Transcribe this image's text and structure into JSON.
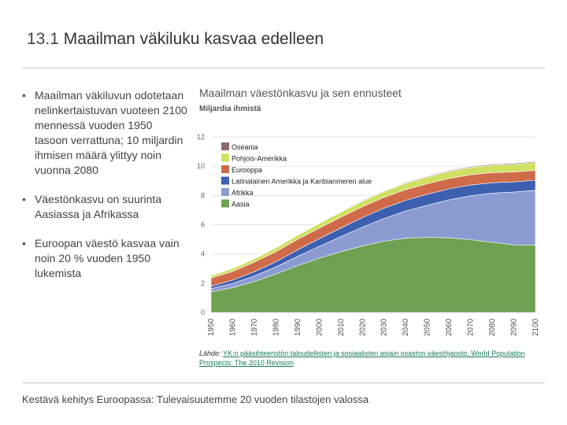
{
  "slide": {
    "number": "13.1",
    "title": "Maailman väkiluku kasvaa edelleen",
    "footer": "Kestävä kehitys Euroopassa: Tulevaisuutemme 20 vuoden tilastojen valossa"
  },
  "bullets": [
    "Maailman väkiluvun odotetaan nelinkertaistuvan vuoteen 2100 mennessä vuoden 1950 tasoon verrattuna; 10 miljardin ihmisen määrä ylittyy noin vuonna 2080",
    "Väestönkasvu on suurinta Aasiassa ja Afrikassa",
    "Euroopan väestö kasvaa vain noin 20 % vuoden 1950 lukemista"
  ],
  "source": {
    "prefix": "Lähde: ",
    "link_text": "YK:n pääsihteeristön taloudellisten ja sosiaalisten asiain osaston väestöjaosto, World Population Prospects: The 2010 Revision"
  },
  "chart_data": {
    "type": "area",
    "stacked": true,
    "title": "Maailman väestönkasvu ja sen ennusteet",
    "ylabel": "Miljardia ihmistä",
    "ylim": [
      0,
      12
    ],
    "yticks": [
      0,
      2,
      4,
      6,
      8,
      10,
      12
    ],
    "x": [
      1950,
      1960,
      1970,
      1980,
      1990,
      2000,
      2010,
      2020,
      2030,
      2040,
      2050,
      2060,
      2070,
      2080,
      2090,
      2100
    ],
    "series": [
      {
        "name": "Aasia",
        "color": "#6fa152",
        "values": [
          1.4,
          1.7,
          2.12,
          2.63,
          3.2,
          3.71,
          4.16,
          4.55,
          4.87,
          5.08,
          5.14,
          5.1,
          4.98,
          4.8,
          4.62,
          4.6
        ]
      },
      {
        "name": "Afrikka",
        "color": "#8b9bd2",
        "values": [
          0.23,
          0.29,
          0.37,
          0.48,
          0.63,
          0.81,
          1.02,
          1.29,
          1.56,
          1.86,
          2.19,
          2.6,
          3.0,
          3.36,
          3.62,
          3.75
        ]
      },
      {
        "name": "Latinalainen Amerikka ja Karibianmeren alue",
        "color": "#3d5fb0",
        "values": [
          0.17,
          0.22,
          0.29,
          0.36,
          0.45,
          0.52,
          0.59,
          0.65,
          0.7,
          0.73,
          0.75,
          0.75,
          0.73,
          0.71,
          0.69,
          0.69
        ]
      },
      {
        "name": "Eurooppa",
        "color": "#d06b4a",
        "values": [
          0.55,
          0.6,
          0.66,
          0.69,
          0.72,
          0.73,
          0.74,
          0.74,
          0.74,
          0.73,
          0.72,
          0.71,
          0.7,
          0.69,
          0.68,
          0.68
        ]
      },
      {
        "name": "Pohjois-Amerikka",
        "color": "#cfe062",
        "values": [
          0.17,
          0.2,
          0.23,
          0.25,
          0.28,
          0.32,
          0.35,
          0.38,
          0.4,
          0.43,
          0.45,
          0.48,
          0.5,
          0.51,
          0.52,
          0.53
        ]
      },
      {
        "name": "Oseania",
        "color": "#8c6a6c",
        "values": [
          0.013,
          0.016,
          0.02,
          0.023,
          0.027,
          0.031,
          0.037,
          0.041,
          0.046,
          0.05,
          0.054,
          0.057,
          0.059,
          0.061,
          0.063,
          0.064
        ]
      }
    ],
    "legend": [
      "Oseania",
      "Pohjois-Amerikka",
      "Eurooppa",
      "Latinalainen Amerikka ja Karibianmeren alue",
      "Afrikka",
      "Aasia"
    ],
    "legend_position": "top-left"
  }
}
